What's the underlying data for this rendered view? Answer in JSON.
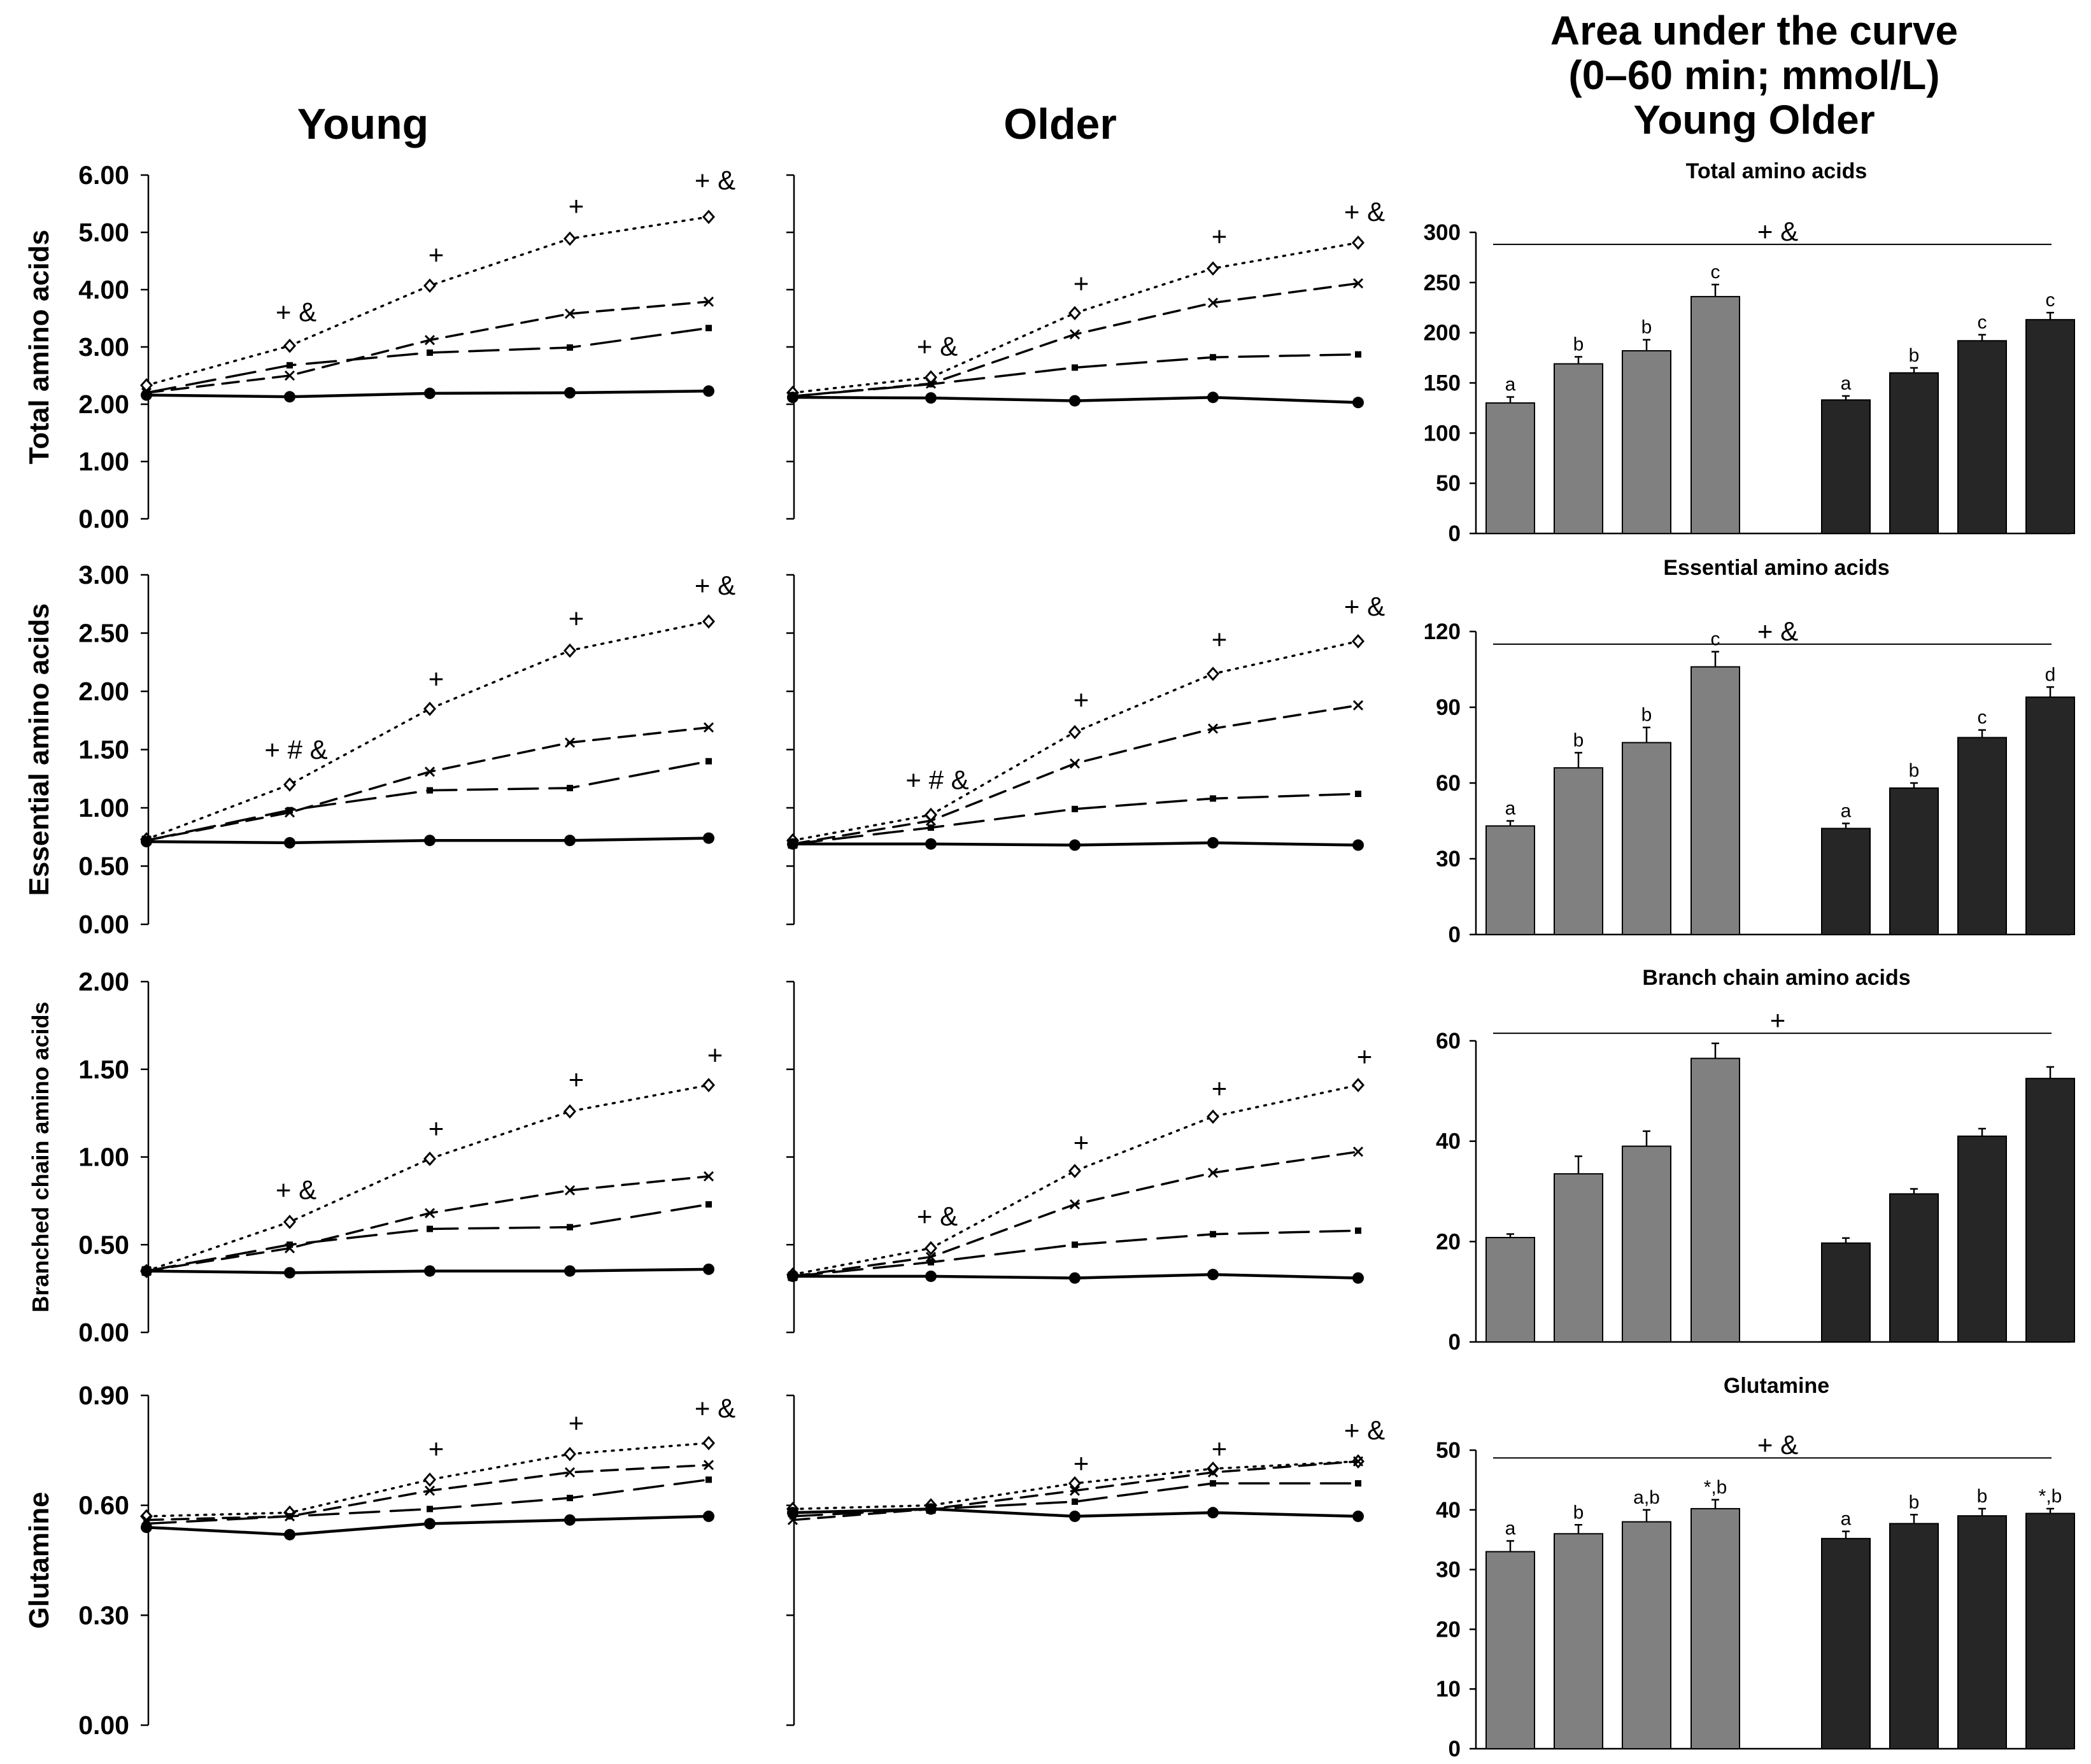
{
  "figure": {
    "col_young": "Young",
    "col_older": "Older",
    "auc_title_line1": "Area under the curve",
    "auc_title_line2": "(0–60 min; mmol/L)",
    "auc_title_line3": "Young Older"
  },
  "chart_data": [
    {
      "type": "line",
      "row": 0,
      "group": "young",
      "ylabel": "Total amino acids",
      "ylim": [
        0,
        6
      ],
      "yticks": [
        "0.00",
        "1.00",
        "2.00",
        "3.00",
        "4.00",
        "5.00",
        "6.00"
      ],
      "x": [
        0,
        15,
        30,
        45,
        60
      ],
      "series": [
        {
          "style": "dotted-diamond",
          "values": [
            2.33,
            3.02,
            4.07,
            4.89,
            5.27
          ]
        },
        {
          "style": "dashed-cross",
          "values": [
            2.2,
            2.5,
            3.12,
            3.58,
            3.79
          ]
        },
        {
          "style": "longdash-square",
          "values": [
            2.2,
            2.68,
            2.9,
            2.99,
            3.33
          ]
        },
        {
          "style": "solid-circle",
          "values": [
            2.16,
            2.13,
            2.19,
            2.2,
            2.23
          ]
        }
      ],
      "annotations": [
        {
          "xi": 1,
          "text": "+ &",
          "y": 3.45
        },
        {
          "xi": 2,
          "text": "+",
          "y": 4.45
        },
        {
          "xi": 3,
          "text": "+",
          "y": 5.3
        },
        {
          "xi": 4,
          "text": "+ &",
          "y": 5.75
        }
      ]
    },
    {
      "type": "line",
      "row": 0,
      "group": "older",
      "ylabel": "",
      "ylim": [
        0,
        6
      ],
      "yticks": [],
      "x": [
        0,
        15,
        30,
        45,
        60
      ],
      "series": [
        {
          "style": "dotted-diamond",
          "values": [
            2.2,
            2.47,
            3.59,
            4.37,
            4.82
          ]
        },
        {
          "style": "dashed-cross",
          "values": [
            2.14,
            2.36,
            3.22,
            3.77,
            4.11
          ]
        },
        {
          "style": "longdash-square",
          "values": [
            2.14,
            2.35,
            2.64,
            2.82,
            2.87
          ]
        },
        {
          "style": "solid-circle",
          "values": [
            2.12,
            2.11,
            2.06,
            2.12,
            2.03
          ]
        }
      ],
      "annotations": [
        {
          "xi": 1,
          "text": "+ &",
          "y": 2.85
        },
        {
          "xi": 2,
          "text": "+",
          "y": 3.95
        },
        {
          "xi": 3,
          "text": "+",
          "y": 4.77
        },
        {
          "xi": 4,
          "text": "+ &",
          "y": 5.2
        }
      ]
    },
    {
      "type": "line",
      "row": 1,
      "group": "young",
      "ylabel": "Essential  amino acids",
      "ylim": [
        0,
        3
      ],
      "yticks": [
        "0.00",
        "0.50",
        "1.00",
        "1.50",
        "2.00",
        "2.50",
        "3.00"
      ],
      "x": [
        0,
        15,
        30,
        45,
        60
      ],
      "series": [
        {
          "style": "dotted-diamond",
          "values": [
            0.73,
            1.2,
            1.85,
            2.35,
            2.6
          ]
        },
        {
          "style": "dashed-cross",
          "values": [
            0.72,
            0.96,
            1.31,
            1.56,
            1.69
          ]
        },
        {
          "style": "longdash-square",
          "values": [
            0.72,
            0.98,
            1.15,
            1.17,
            1.4
          ]
        },
        {
          "style": "solid-circle",
          "values": [
            0.71,
            0.7,
            0.72,
            0.72,
            0.74
          ]
        }
      ],
      "annotations": [
        {
          "xi": 1,
          "text": "+ # &",
          "y": 1.42
        },
        {
          "xi": 2,
          "text": "+",
          "y": 2.03
        },
        {
          "xi": 3,
          "text": "+",
          "y": 2.55
        },
        {
          "xi": 4,
          "text": "+ &",
          "y": 2.83
        }
      ]
    },
    {
      "type": "line",
      "row": 1,
      "group": "older",
      "ylabel": "",
      "ylim": [
        0,
        3
      ],
      "yticks": [],
      "x": [
        0,
        15,
        30,
        45,
        60
      ],
      "series": [
        {
          "style": "dotted-diamond",
          "values": [
            0.72,
            0.94,
            1.65,
            2.15,
            2.43
          ]
        },
        {
          "style": "dashed-cross",
          "values": [
            0.69,
            0.89,
            1.38,
            1.68,
            1.88
          ]
        },
        {
          "style": "longdash-square",
          "values": [
            0.69,
            0.83,
            0.99,
            1.08,
            1.12
          ]
        },
        {
          "style": "solid-circle",
          "values": [
            0.69,
            0.69,
            0.68,
            0.7,
            0.68
          ]
        }
      ],
      "annotations": [
        {
          "xi": 1,
          "text": "+ # &",
          "y": 1.16
        },
        {
          "xi": 2,
          "text": "+",
          "y": 1.85
        },
        {
          "xi": 3,
          "text": "+",
          "y": 2.37
        },
        {
          "xi": 4,
          "text": "+ &",
          "y": 2.65
        }
      ]
    },
    {
      "type": "line",
      "row": 2,
      "group": "young",
      "ylabel": "Branched chain amino acids",
      "ylim": [
        0,
        2
      ],
      "yticks": [
        "0.00",
        "0.50",
        "1.00",
        "1.50",
        "2.00"
      ],
      "x": [
        0,
        15,
        30,
        45,
        60
      ],
      "series": [
        {
          "style": "dotted-diamond",
          "values": [
            0.35,
            0.63,
            0.99,
            1.26,
            1.41
          ]
        },
        {
          "style": "dashed-cross",
          "values": [
            0.35,
            0.48,
            0.68,
            0.81,
            0.89
          ]
        },
        {
          "style": "longdash-square",
          "values": [
            0.35,
            0.5,
            0.59,
            0.6,
            0.73
          ]
        },
        {
          "style": "solid-circle",
          "values": [
            0.35,
            0.34,
            0.35,
            0.35,
            0.36
          ]
        }
      ],
      "annotations": [
        {
          "xi": 1,
          "text": "+ &",
          "y": 0.76
        },
        {
          "xi": 2,
          "text": "+",
          "y": 1.11
        },
        {
          "xi": 3,
          "text": "+",
          "y": 1.39
        },
        {
          "xi": 4,
          "text": "+",
          "y": 1.53
        }
      ]
    },
    {
      "type": "line",
      "row": 2,
      "group": "older",
      "ylabel": "",
      "ylim": [
        0,
        2
      ],
      "yticks": [],
      "x": [
        0,
        15,
        30,
        45,
        60
      ],
      "series": [
        {
          "style": "dotted-diamond",
          "values": [
            0.33,
            0.48,
            0.92,
            1.23,
            1.41
          ]
        },
        {
          "style": "dashed-cross",
          "values": [
            0.32,
            0.43,
            0.73,
            0.91,
            1.03
          ]
        },
        {
          "style": "longdash-square",
          "values": [
            0.32,
            0.4,
            0.5,
            0.56,
            0.58
          ]
        },
        {
          "style": "solid-circle",
          "values": [
            0.32,
            0.32,
            0.31,
            0.33,
            0.31
          ]
        }
      ],
      "annotations": [
        {
          "xi": 1,
          "text": "+ &",
          "y": 0.61
        },
        {
          "xi": 2,
          "text": "+",
          "y": 1.03
        },
        {
          "xi": 3,
          "text": "+",
          "y": 1.34
        },
        {
          "xi": 4,
          "text": "+",
          "y": 1.52
        }
      ]
    },
    {
      "type": "line",
      "row": 3,
      "group": "young",
      "ylabel": "Glutamine",
      "ylim": [
        0,
        0.9
      ],
      "yticks": [
        "0.00",
        "0.30",
        "0.60",
        "0.90"
      ],
      "x": [
        0,
        15,
        30,
        45,
        60
      ],
      "series": [
        {
          "style": "dotted-diamond",
          "values": [
            0.57,
            0.58,
            0.67,
            0.74,
            0.77
          ]
        },
        {
          "style": "dashed-cross",
          "values": [
            0.56,
            0.57,
            0.64,
            0.69,
            0.71
          ]
        },
        {
          "style": "longdash-square",
          "values": [
            0.55,
            0.57,
            0.59,
            0.62,
            0.67
          ]
        },
        {
          "style": "solid-circle",
          "values": [
            0.54,
            0.52,
            0.55,
            0.56,
            0.57
          ]
        }
      ],
      "annotations": [
        {
          "xi": 2,
          "text": "+",
          "y": 0.73
        },
        {
          "xi": 3,
          "text": "+",
          "y": 0.8
        },
        {
          "xi": 4,
          "text": "+ &",
          "y": 0.84
        }
      ]
    },
    {
      "type": "line",
      "row": 3,
      "group": "older",
      "ylabel": "",
      "ylim": [
        0,
        0.9
      ],
      "yticks": [],
      "x": [
        0,
        15,
        30,
        45,
        60
      ],
      "series": [
        {
          "style": "dotted-diamond",
          "values": [
            0.59,
            0.6,
            0.66,
            0.7,
            0.72
          ]
        },
        {
          "style": "dashed-cross",
          "values": [
            0.56,
            0.59,
            0.64,
            0.69,
            0.72
          ]
        },
        {
          "style": "longdash-square",
          "values": [
            0.57,
            0.59,
            0.61,
            0.66,
            0.66
          ]
        },
        {
          "style": "solid-circle",
          "values": [
            0.58,
            0.59,
            0.57,
            0.58,
            0.57
          ]
        }
      ],
      "annotations": [
        {
          "xi": 2,
          "text": "+",
          "y": 0.69
        },
        {
          "xi": 3,
          "text": "+",
          "y": 0.73
        },
        {
          "xi": 4,
          "text": "+ &",
          "y": 0.78
        }
      ]
    },
    {
      "type": "bar",
      "row": 0,
      "title": "Total amino acids",
      "ylim": [
        0,
        300
      ],
      "yticks": [
        "0",
        "50",
        "100",
        "150",
        "200",
        "250",
        "300"
      ],
      "groups": [
        "Young",
        "Older"
      ],
      "series": [
        {
          "name": "Young",
          "color": "#808080",
          "values": [
            130,
            169,
            182,
            236
          ],
          "errors": [
            6,
            7,
            11,
            12
          ],
          "letters": [
            "a",
            "b",
            "b",
            "c"
          ]
        },
        {
          "name": "Older",
          "color": "#262626",
          "values": [
            133,
            160,
            192,
            213
          ],
          "errors": [
            4,
            5,
            6,
            7
          ],
          "letters": [
            "a",
            "b",
            "c",
            "c"
          ]
        }
      ],
      "significance": {
        "text": "+ &",
        "line_y": 288
      }
    },
    {
      "type": "bar",
      "row": 1,
      "title": "Essential amino acids",
      "ylim": [
        0,
        120
      ],
      "yticks": [
        "0",
        "30",
        "60",
        "90",
        "120"
      ],
      "groups": [
        "Young",
        "Older"
      ],
      "series": [
        {
          "name": "Young",
          "color": "#808080",
          "values": [
            43,
            66,
            76,
            106
          ],
          "errors": [
            2,
            6,
            6,
            6
          ],
          "letters": [
            "a",
            "b",
            "b",
            "c"
          ]
        },
        {
          "name": "Older",
          "color": "#262626",
          "values": [
            42,
            58,
            78,
            94
          ],
          "errors": [
            2,
            2,
            3,
            4
          ],
          "letters": [
            "a",
            "b",
            "c",
            "d"
          ]
        }
      ],
      "significance": {
        "text": "+ &",
        "line_y": 115
      }
    },
    {
      "type": "bar",
      "row": 2,
      "title": "Branch chain amino acids",
      "ylim": [
        0,
        60
      ],
      "yticks": [
        "0",
        "20",
        "40",
        "60"
      ],
      "groups": [
        "Young",
        "Older"
      ],
      "series": [
        {
          "name": "Young",
          "color": "#808080",
          "values": [
            20.8,
            33.5,
            39,
            56.5
          ],
          "errors": [
            0.7,
            3.5,
            3,
            3
          ],
          "letters": [
            "",
            "",
            "",
            ""
          ]
        },
        {
          "name": "Older",
          "color": "#262626",
          "values": [
            19.7,
            29.5,
            41,
            52.5
          ],
          "errors": [
            1,
            1,
            1.5,
            2.3
          ],
          "letters": [
            "",
            "",
            "",
            ""
          ]
        }
      ],
      "significance": {
        "text": "+",
        "line_y": 61.5
      }
    },
    {
      "type": "bar",
      "row": 3,
      "title": "Glutamine",
      "ylim": [
        0,
        50
      ],
      "yticks": [
        "0",
        "10",
        "20",
        "30",
        "40",
        "50"
      ],
      "groups": [
        "Young",
        "Older"
      ],
      "series": [
        {
          "name": "Young",
          "color": "#808080",
          "values": [
            33,
            36,
            38,
            40.2
          ],
          "errors": [
            1.8,
            1.5,
            2,
            1.5
          ],
          "letters": [
            "a",
            "b",
            "a,b",
            "*,b"
          ]
        },
        {
          "name": "Older",
          "color": "#262626",
          "values": [
            35.2,
            37.7,
            39,
            39.4
          ],
          "errors": [
            1.2,
            1.5,
            1.2,
            0.8
          ],
          "letters": [
            "a",
            "b",
            "b",
            "*,b"
          ]
        }
      ],
      "significance": {
        "text": "+ &",
        "line_y": 48.7
      }
    }
  ]
}
